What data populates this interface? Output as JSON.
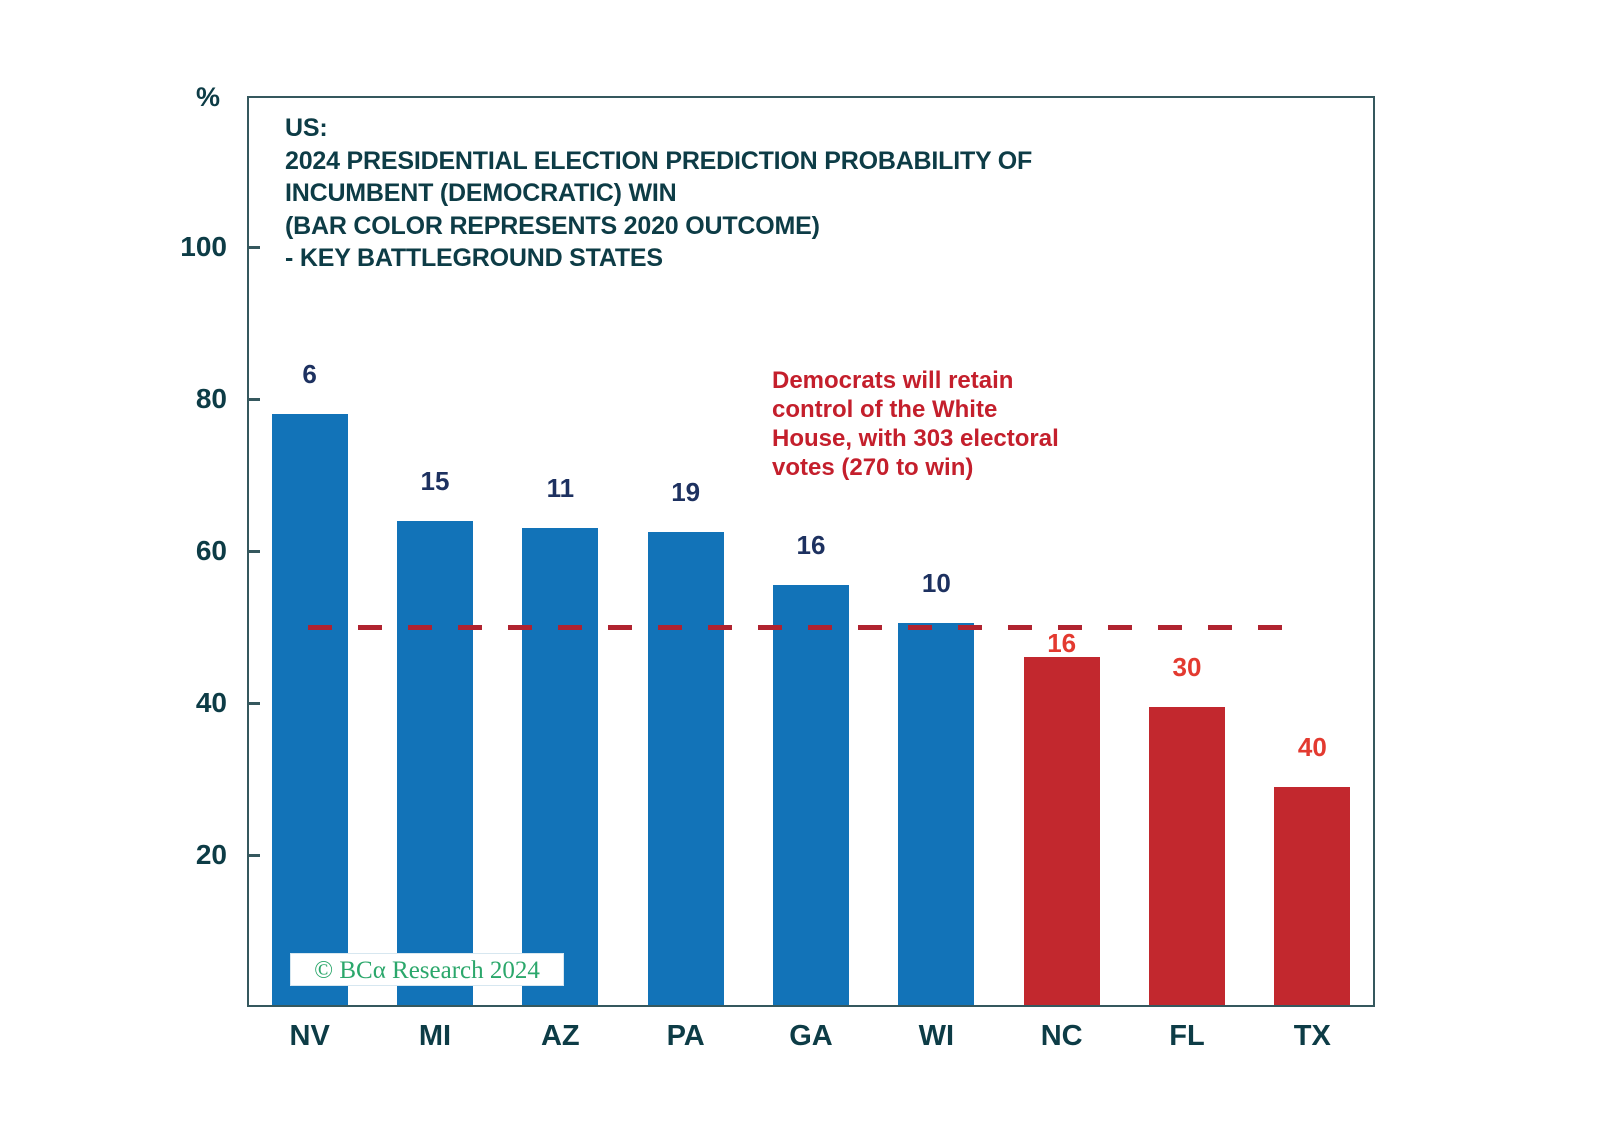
{
  "chart_data": {
    "type": "bar",
    "title": "US:\n2024 PRESIDENTIAL ELECTION PREDICTION PROBABILITY OF\nINCUMBENT (DEMOCRATIC) WIN\n(BAR COLOR REPRESENTS 2020 OUTCOME)\n-  KEY BATTLEGROUND STATES",
    "ylabel": "%",
    "categories": [
      "NV",
      "MI",
      "AZ",
      "PA",
      "GA",
      "WI",
      "NC",
      "FL",
      "TX"
    ],
    "values": [
      78,
      64,
      63,
      62.5,
      55.5,
      50.5,
      46,
      39.5,
      29
    ],
    "bar_labels": [
      "6",
      "15",
      "11",
      "19",
      "16",
      "10",
      "16",
      "30",
      "40"
    ],
    "bar_color_2020_outcome": [
      "dem",
      "dem",
      "dem",
      "dem",
      "dem",
      "dem",
      "rep",
      "rep",
      "rep"
    ],
    "colors": {
      "dem_bar": "#1273b8",
      "rep_bar": "#c2282e",
      "dem_value_label": "#1d3160",
      "rep_value_label": "#e33a30",
      "reference_line": "#b0232f",
      "axis_text": "#0d3c46",
      "annotation_text": "#c41f2c",
      "watermark_text": "#2ba76b"
    },
    "yticks": [
      20,
      40,
      60,
      80,
      100
    ],
    "ylim": [
      0,
      120
    ],
    "grid": false,
    "legend": false,
    "reference_line": {
      "value": 50,
      "style": "dashed"
    },
    "annotation": {
      "text": "Democrats will retain\ncontrol of the White\nHouse, with 303 electoral\nvotes (270 to win)"
    },
    "watermark": "© BCα Research 2024"
  }
}
